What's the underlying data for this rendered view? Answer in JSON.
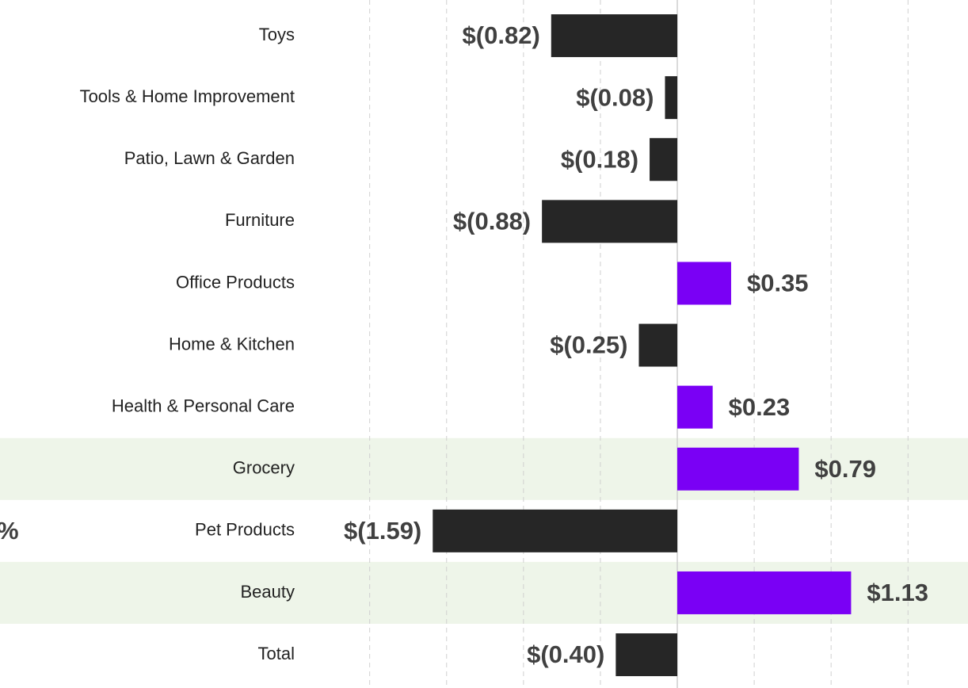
{
  "chart_data": {
    "type": "hbar",
    "categories": [
      "Toys",
      "Tools & Home Improvement",
      "Patio, Lawn & Garden",
      "Furniture",
      "Office Products",
      "Home & Kitchen",
      "Health & Personal Care",
      "Grocery",
      "Pet Products",
      "Beauty",
      "Total"
    ],
    "values": [
      -0.82,
      -0.08,
      -0.18,
      -0.88,
      0.35,
      -0.25,
      0.23,
      0.79,
      -1.59,
      1.13,
      -0.4
    ],
    "value_labels": [
      "$(0.82)",
      "$(0.08)",
      "$(0.18)",
      "$(0.88)",
      "$0.35",
      "$(0.25)",
      "$0.23",
      "$0.79",
      "$(1.59)",
      "$1.13",
      "$(0.40)"
    ],
    "color_positive": "#7a00f5",
    "color_negative": "#262626",
    "highlight": [
      7,
      9
    ],
    "highlight_color": "#eef5e9",
    "xlim": [
      -2.4,
      1.89
    ],
    "xticks": [
      -2,
      -1.5,
      -1,
      -0.5,
      0,
      0.5,
      1,
      1.5
    ],
    "grid": true,
    "annotation": "%"
  }
}
